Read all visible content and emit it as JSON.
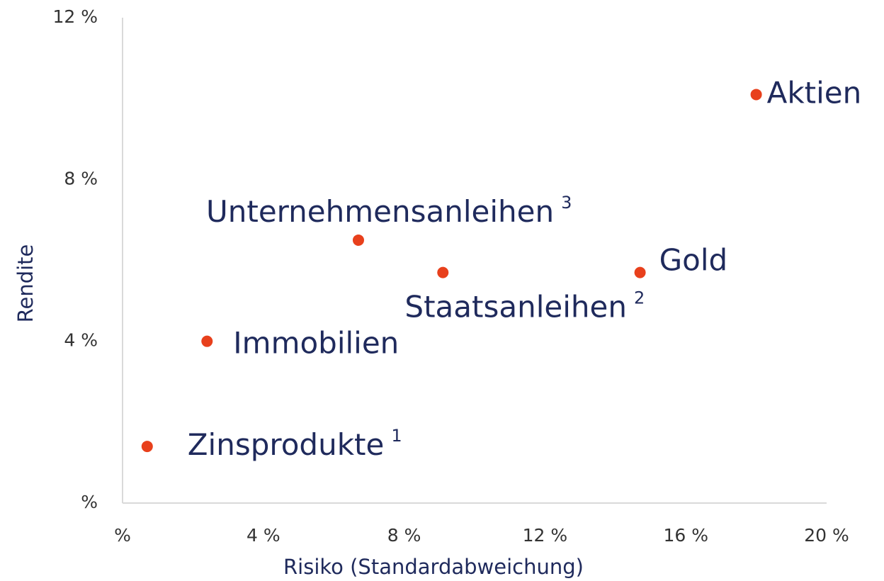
{
  "chart_data": {
    "type": "scatter",
    "x_label": "Risiko (Standardabweichung)",
    "y_label": "Rendite",
    "x": [
      0.7,
      2.4,
      6.7,
      9.1,
      14.7,
      18.0
    ],
    "values": [
      1.4,
      4.0,
      6.5,
      5.7,
      5.7,
      10.1
    ],
    "labels": [
      "Zinsprodukte",
      "Immobilien",
      "Unternehmensanleihen",
      "Staatsanleihen",
      "Gold",
      "Aktien"
    ],
    "label_notes": [
      "1",
      null,
      "3",
      "2",
      null,
      null
    ],
    "color": "#e8401c",
    "xlim": [
      0,
      20
    ],
    "xticks": [
      {
        "value": 0,
        "label": "%"
      },
      {
        "value": 4,
        "label": "4 %"
      },
      {
        "value": 8,
        "label": "8 %"
      },
      {
        "value": 12,
        "label": "12 %"
      },
      {
        "value": 16,
        "label": "16 %"
      },
      {
        "value": 20,
        "label": "20 %"
      }
    ],
    "ylim": [
      0,
      12
    ],
    "yticks": [
      {
        "value": 0,
        "label": "%"
      },
      {
        "value": 4,
        "label": "4 %"
      },
      {
        "value": 8,
        "label": "8 %"
      },
      {
        "value": 12,
        "label": "12 %"
      }
    ]
  }
}
